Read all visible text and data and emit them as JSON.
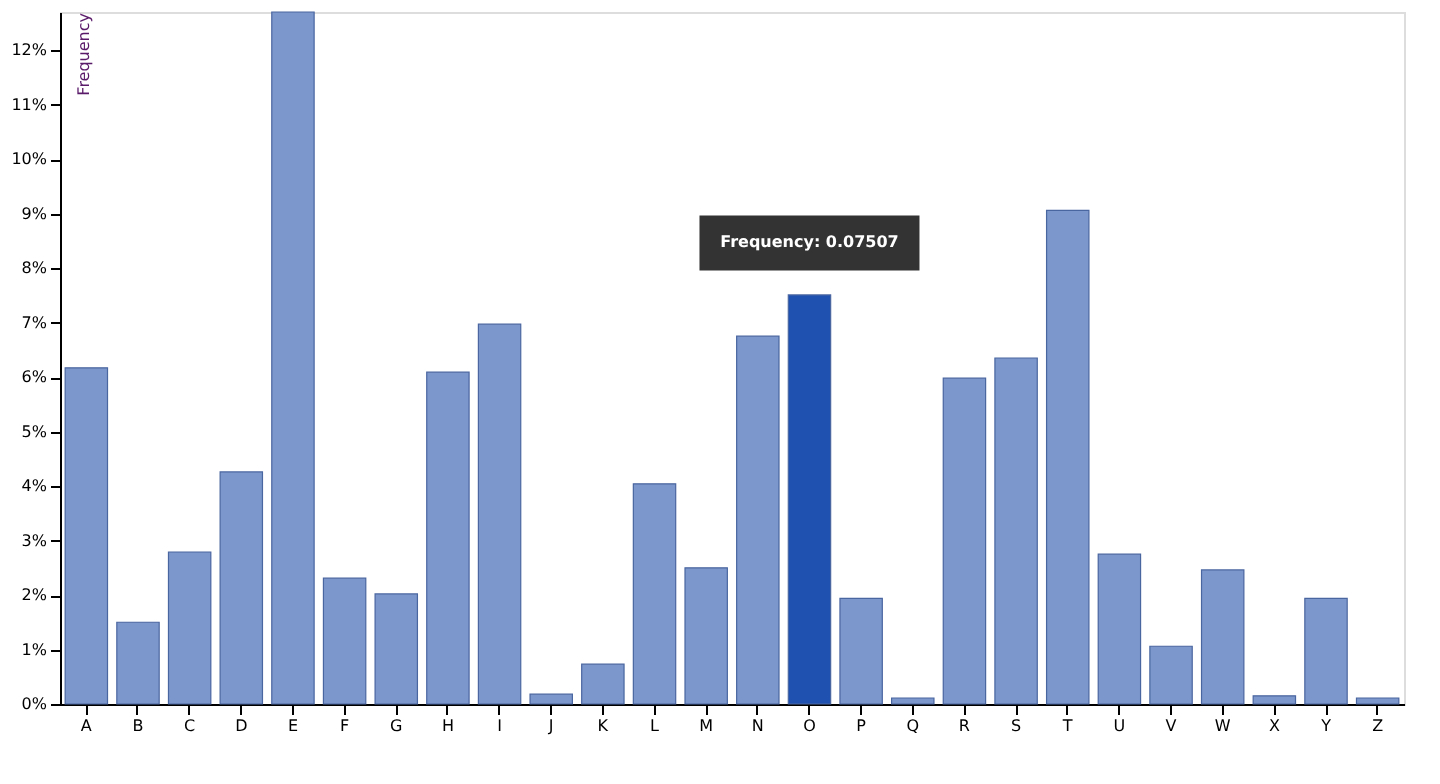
{
  "chart_data": {
    "type": "bar",
    "ylabel": "Frequency",
    "categories": [
      "A",
      "B",
      "C",
      "D",
      "E",
      "F",
      "G",
      "H",
      "I",
      "J",
      "K",
      "L",
      "M",
      "N",
      "O",
      "P",
      "Q",
      "R",
      "S",
      "T",
      "U",
      "V",
      "W",
      "X",
      "Y",
      "Z"
    ],
    "values": [
      6.17,
      1.5,
      2.79,
      4.26,
      12.7,
      2.31,
      2.02,
      6.09,
      6.97,
      0.18,
      0.73,
      4.04,
      2.5,
      6.75,
      7.507,
      1.94,
      0.11,
      5.98,
      6.35,
      9.06,
      2.75,
      1.06,
      2.46,
      0.15,
      1.94,
      0.11
    ],
    "colors": [
      "#7b97cb",
      "#7b97cb",
      "#7b97cb",
      "#7b97cb",
      "#7b97cb",
      "#7b97cb",
      "#7b97cb",
      "#7b97cb",
      "#7b97cb",
      "#7b97cb",
      "#7b97cb",
      "#7b97cb",
      "#7b97cb",
      "#7b97cb",
      "#1f52b0",
      "#7b97cb",
      "#7b97cb",
      "#7b97cb",
      "#7b97cb",
      "#7b97cb",
      "#7b97cb",
      "#7b97cb",
      "#7b97cb",
      "#7b97cb",
      "#7b97cb",
      "#7b97cb"
    ],
    "ylim": [
      0,
      12.7
    ],
    "yticks": [
      {
        "value": 0,
        "label": "0%"
      },
      {
        "value": 1,
        "label": "1%"
      },
      {
        "value": 2,
        "label": "2%"
      },
      {
        "value": 3,
        "label": "3%"
      },
      {
        "value": 4,
        "label": "4%"
      },
      {
        "value": 5,
        "label": "5%"
      },
      {
        "value": 6,
        "label": "6%"
      },
      {
        "value": 7,
        "label": "7%"
      },
      {
        "value": 8,
        "label": "8%"
      },
      {
        "value": 9,
        "label": "9%"
      },
      {
        "value": 10,
        "label": "10%"
      },
      {
        "value": 11,
        "label": "11%"
      },
      {
        "value": 12,
        "label": "12%"
      }
    ],
    "annotations": [
      {
        "text": "Frequency: 0.07507",
        "x": "O",
        "y": 7.507
      }
    ],
    "grid": false
  }
}
